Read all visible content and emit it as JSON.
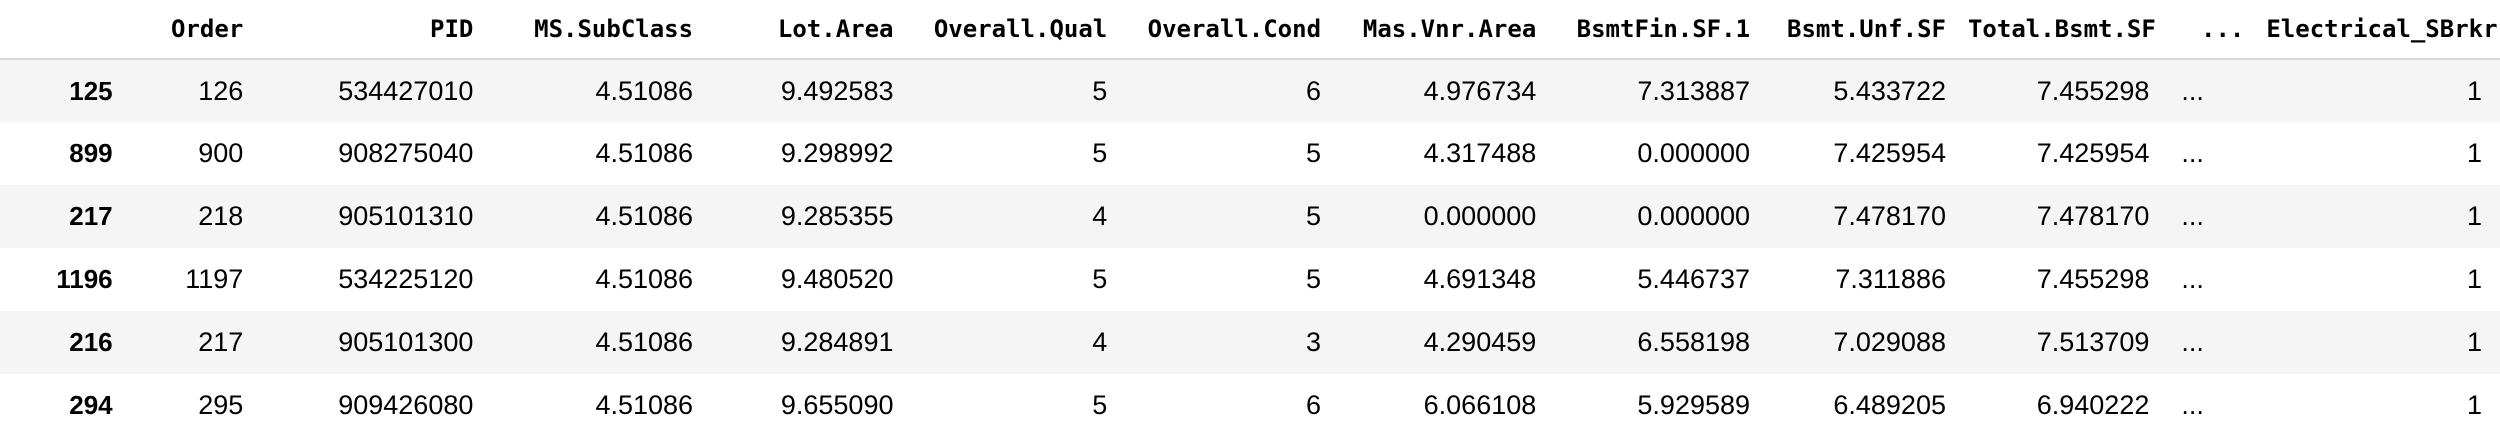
{
  "table": {
    "columns": [
      "",
      "Order",
      "PID",
      "MS.SubClass",
      "Lot.Area",
      "Overall.Qual",
      "Overall.Cond",
      "Mas.Vnr.Area",
      "BsmtFin.SF.1",
      "Bsmt.Unf.SF",
      "Total.Bsmt.SF",
      "...",
      "Electrical_SBrkr"
    ],
    "rows": [
      [
        "125",
        "126",
        "534427010",
        "4.51086",
        "9.492583",
        "5",
        "6",
        "4.976734",
        "7.313887",
        "5.433722",
        "7.455298",
        "...",
        "1"
      ],
      [
        "899",
        "900",
        "908275040",
        "4.51086",
        "9.298992",
        "5",
        "5",
        "4.317488",
        "0.000000",
        "7.425954",
        "7.425954",
        "...",
        "1"
      ],
      [
        "217",
        "218",
        "905101310",
        "4.51086",
        "9.285355",
        "4",
        "5",
        "0.000000",
        "0.000000",
        "7.478170",
        "7.478170",
        "...",
        "1"
      ],
      [
        "1196",
        "1197",
        "534225120",
        "4.51086",
        "9.480520",
        "5",
        "5",
        "4.691348",
        "5.446737",
        "7.311886",
        "7.455298",
        "...",
        "1"
      ],
      [
        "216",
        "217",
        "905101300",
        "4.51086",
        "9.284891",
        "4",
        "3",
        "4.290459",
        "6.558198",
        "7.029088",
        "7.513709",
        "...",
        "1"
      ],
      [
        "294",
        "295",
        "909426080",
        "4.51086",
        "9.655090",
        "5",
        "6",
        "6.066108",
        "5.929589",
        "6.489205",
        "6.940222",
        "...",
        "1"
      ]
    ]
  },
  "colors": {
    "stripe": "#f5f5f5",
    "text": "#000000",
    "header_rule": "#d8d8d8"
  }
}
